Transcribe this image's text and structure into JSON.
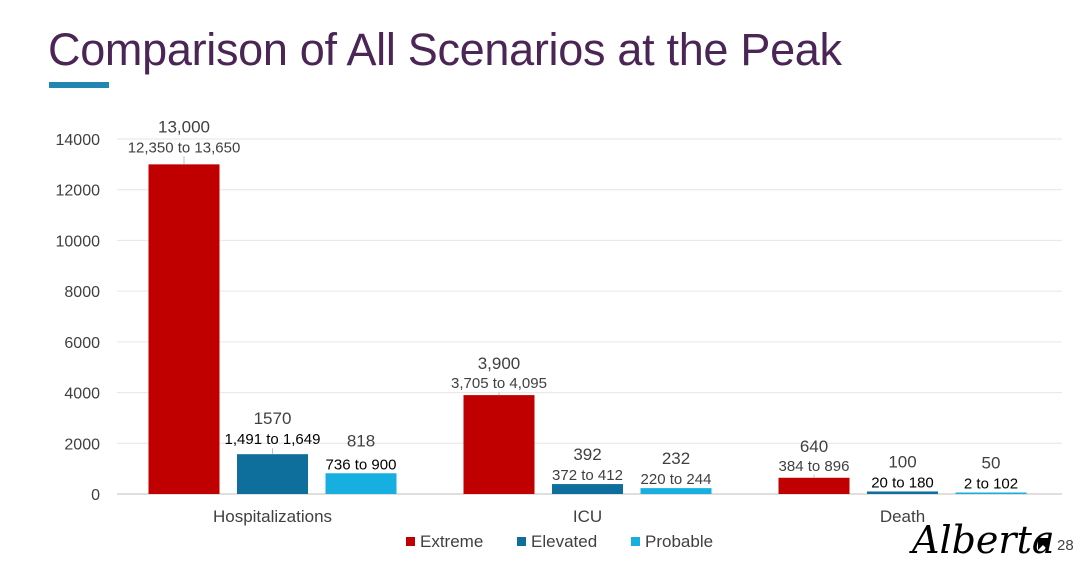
{
  "slide": {
    "title": "Comparison of All Scenarios at the Peak",
    "logo_text": "Alberta",
    "page_number": "28"
  },
  "colors": {
    "title": "#4a2555",
    "accent": "#1f87b0",
    "extreme": "#c00000",
    "elevated": "#0e6f9c",
    "probable": "#17aee0"
  },
  "chart_data": {
    "type": "bar",
    "title": "Comparison of All Scenarios at the Peak",
    "xlabel": "",
    "ylabel": "",
    "ylim": [
      0,
      14000
    ],
    "yticks": [
      0,
      2000,
      4000,
      6000,
      8000,
      10000,
      12000,
      14000
    ],
    "grid": true,
    "legend": "bottom",
    "categories": [
      "Hospitalizations",
      "ICU",
      "Death"
    ],
    "series": [
      {
        "name": "Extreme",
        "color": "#c00000",
        "values": [
          13000,
          3900,
          640
        ],
        "labels": [
          "13,000",
          "3,900",
          "640"
        ],
        "ranges": [
          "12,350 to 13,650",
          "3,705 to 4,095",
          "384 to 896"
        ]
      },
      {
        "name": "Elevated",
        "color": "#0e6f9c",
        "values": [
          1570,
          392,
          100
        ],
        "labels": [
          "1570",
          "392",
          "100"
        ],
        "ranges": [
          "1,491 to 1,649",
          "372 to 412",
          "20 to 180"
        ]
      },
      {
        "name": "Probable",
        "color": "#17aee0",
        "values": [
          818,
          232,
          50
        ],
        "labels": [
          "818",
          "232",
          "50"
        ],
        "ranges": [
          "736 to 900",
          "220 to 244",
          "2 to 102"
        ]
      }
    ]
  }
}
